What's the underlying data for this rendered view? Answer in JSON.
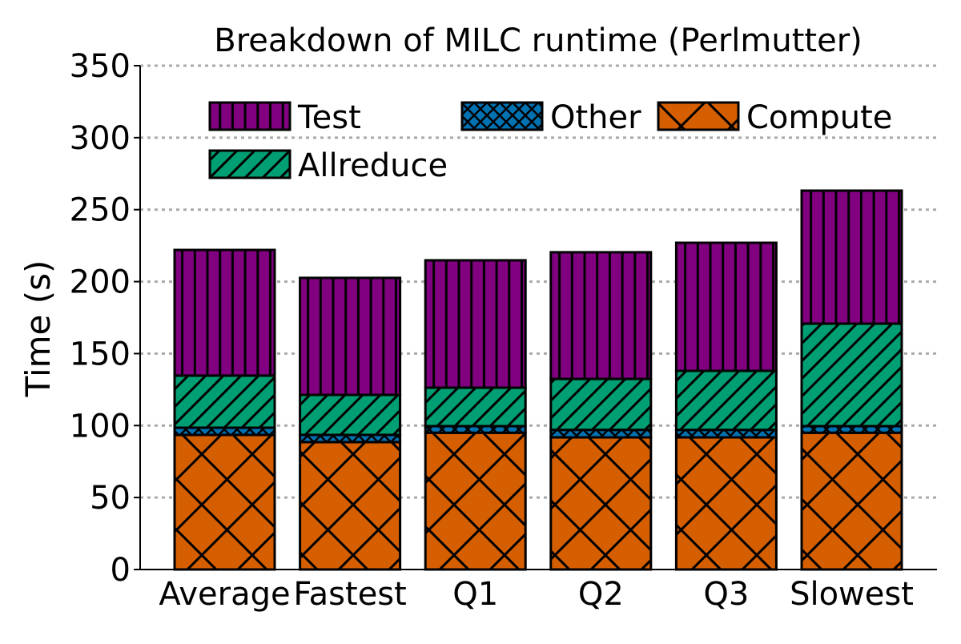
{
  "chart_data": {
    "type": "bar",
    "stacked": true,
    "title": "Breakdown of MILC runtime (Perlmutter)",
    "xlabel": "",
    "ylabel": "Time (s)",
    "ylim": [
      0,
      350
    ],
    "yticks": [
      0,
      50,
      100,
      150,
      200,
      250,
      300,
      350
    ],
    "grid": "horizontal dotted",
    "legend_position": "top",
    "categories": [
      "Average",
      "Fastest",
      "Q1",
      "Q2",
      "Q3",
      "Slowest"
    ],
    "series": [
      {
        "name": "Compute",
        "color": "#d55e00",
        "hatch": "cross",
        "values": [
          93.5,
          88.5,
          95,
          91.8,
          91.8,
          95
        ]
      },
      {
        "name": "Other",
        "color": "#0072b2",
        "hatch": "crosshatch",
        "values": [
          5,
          5,
          4.6,
          5.2,
          5.2,
          4.6
        ]
      },
      {
        "name": "Allreduce",
        "color": "#009e73",
        "hatch": "diagonal",
        "values": [
          36.2,
          27.8,
          26.7,
          35.4,
          41,
          71.2
        ]
      },
      {
        "name": "Test",
        "color": "#800080",
        "hatch": "vertical",
        "values": [
          87.3,
          81.3,
          88.5,
          88,
          89,
          92.4
        ]
      }
    ],
    "legend_order": [
      "Test",
      "Other",
      "Compute",
      "Allreduce"
    ]
  }
}
